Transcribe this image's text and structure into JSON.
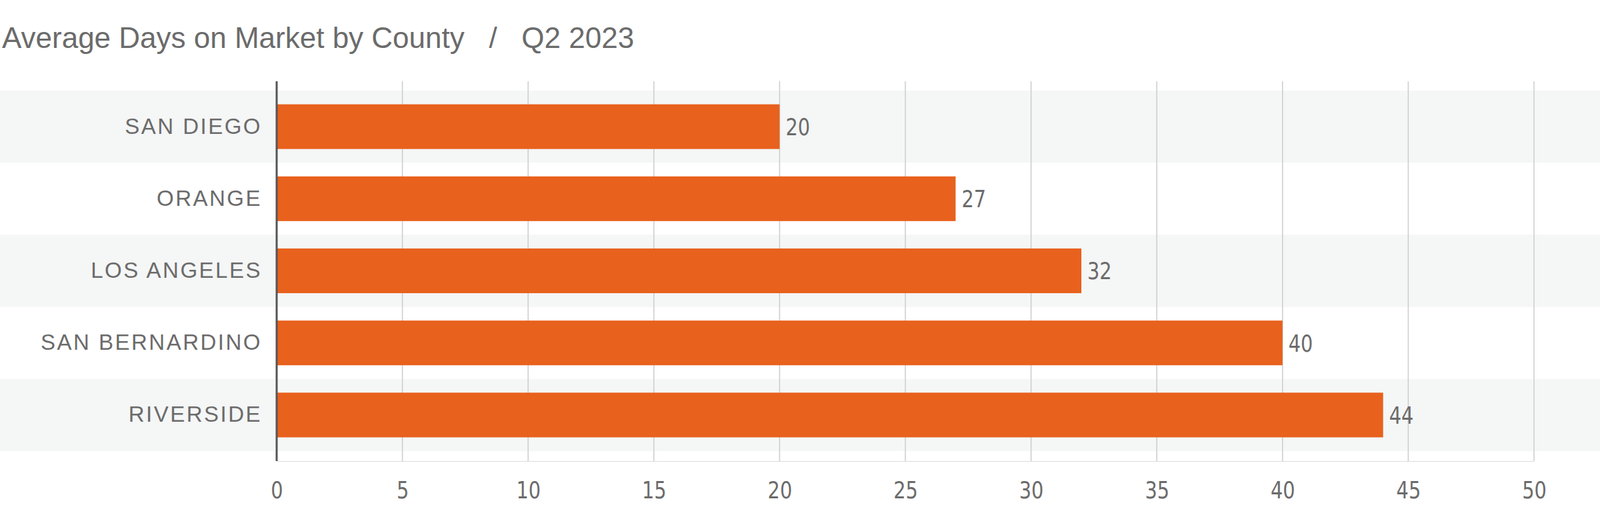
{
  "chart_data": {
    "type": "bar",
    "orientation": "horizontal",
    "title": "Average Days on Market by County   /   Q2 2023",
    "categories": [
      "SAN DIEGO",
      "ORANGE",
      "LOS ANGELES",
      "SAN BERNARDINO",
      "RIVERSIDE"
    ],
    "values": [
      20,
      27,
      32,
      40,
      44
    ],
    "color": "#e8611d",
    "xlim": [
      0,
      50
    ],
    "xticks": [
      0,
      5,
      10,
      15,
      20,
      25,
      30,
      35,
      40,
      45,
      50
    ],
    "grid": true,
    "data_labels": true
  }
}
